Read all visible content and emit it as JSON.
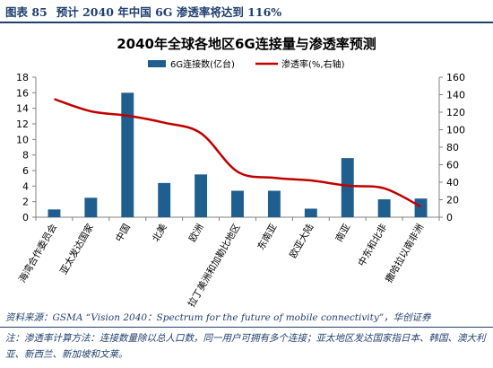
{
  "header": {
    "figure_label": "图表 85",
    "figure_title": "预计 2040 年中国 6G 渗透率将达到 116%"
  },
  "footer": {
    "source": "资料来源：GSMA “Vision 2040：Spectrum for the future of mobile connectivity”，华创证券",
    "note": "注：渗透率计算方法：连接数量除以总人口数，同一用户可拥有多个连接；亚太地区发达国家指日本、韩国、澳大利亚、新西兰、新加坡和文莱。"
  },
  "colors": {
    "bar": "#1f5f8f",
    "line": "#c00000",
    "text_accent": "#1f3f6e"
  },
  "chart_data": {
    "type": "bar",
    "title": "2040年全球各地区6G连接量与渗透率预测",
    "categories": [
      "海湾合作委员会",
      "亚太发达国家",
      "中国",
      "北美",
      "欧洲",
      "拉丁美洲和加勒比地区",
      "东南亚",
      "欧亚大陆",
      "南亚",
      "中东和北非",
      "撒哈拉以南非洲"
    ],
    "series": [
      {
        "name": "6G连接数(亿台)",
        "type": "bar",
        "axis": "left",
        "values": [
          1.0,
          2.5,
          16.0,
          4.4,
          5.5,
          3.4,
          3.4,
          1.1,
          7.6,
          2.3,
          2.4
        ]
      },
      {
        "name": "渗透率(%,右轴)",
        "type": "line",
        "axis": "right",
        "values": [
          135,
          121,
          116,
          108,
          96,
          52,
          45,
          42,
          36,
          33,
          12
        ]
      }
    ],
    "y_left": {
      "min": 0,
      "max": 18,
      "ticks": [
        0,
        2,
        4,
        6,
        8,
        10,
        12,
        14,
        16,
        18
      ]
    },
    "y_right": {
      "min": 0,
      "max": 160,
      "ticks": [
        0,
        20,
        40,
        60,
        80,
        100,
        120,
        140,
        160
      ]
    },
    "legend": "top-center",
    "grid": false
  }
}
